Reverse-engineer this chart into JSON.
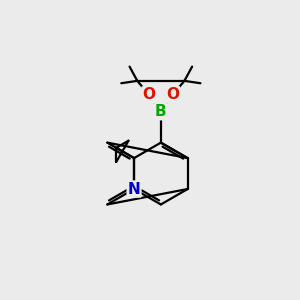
{
  "background_color": "#ebebeb",
  "bond_color": "#000000",
  "B_color": "#00aa00",
  "O_color": "#dd1100",
  "N_color": "#0000cc",
  "line_width": 1.6,
  "figsize": [
    3.0,
    3.0
  ],
  "dpi": 100,
  "xlim": [
    0,
    10
  ],
  "ylim": [
    0,
    10
  ]
}
